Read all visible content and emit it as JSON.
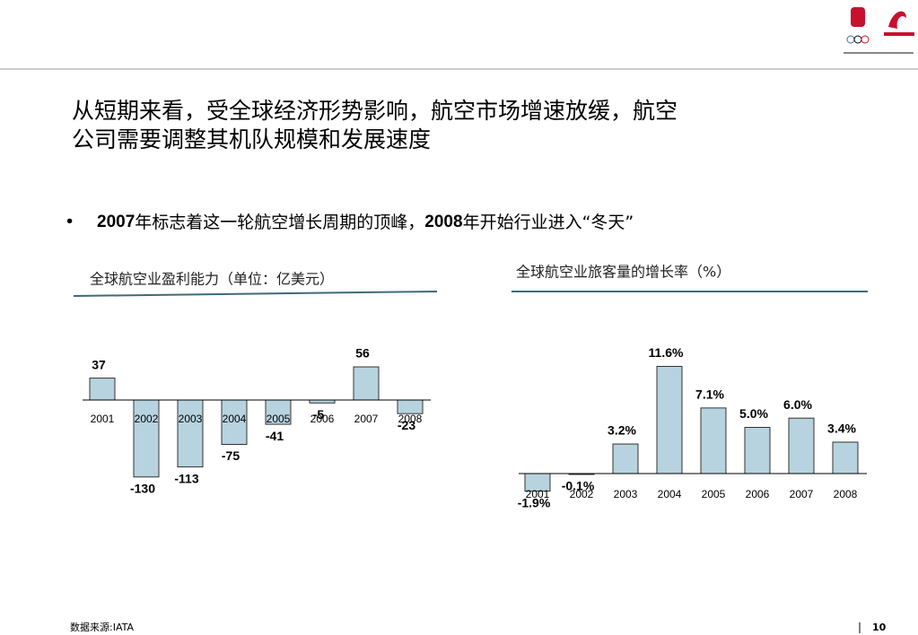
{
  "title": [
    "从短期来看，受全球经济形势影响，航空市场增速放缓，航空",
    "公司需要调整其机队规模和发展速度"
  ],
  "bullet": [
    "2007",
    "年标志着这一轮航空增长周期的顶峰，",
    "2008",
    "年开始行业进入“冬天”"
  ],
  "source": "数据来源:IATA",
  "page_number": "10",
  "chart_data": [
    {
      "type": "bar",
      "title": "全球航空业盈利能力（单位：亿美元）",
      "categories": [
        "2001",
        "2002",
        "2003",
        "2004",
        "2005",
        "2006",
        "2007",
        "2008"
      ],
      "values": [
        37,
        -130,
        -113,
        -75,
        -41,
        -5,
        56,
        -23
      ],
      "color": "#b7d3df"
    },
    {
      "type": "bar",
      "title": "全球航空业旅客量的增长率（%）",
      "categories": [
        "2001",
        "2002",
        "2003",
        "2004",
        "2005",
        "2006",
        "2007",
        "2008"
      ],
      "values": [
        -1.9,
        -0.1,
        3.2,
        11.6,
        7.1,
        5.0,
        6.0,
        3.4
      ],
      "value_labels": [
        "-1.9%",
        "-0.1%",
        "3.2%",
        "11.6%",
        "7.1%",
        "5.0%",
        "6.0%",
        "3.4%"
      ],
      "color": "#b7d3df"
    }
  ]
}
